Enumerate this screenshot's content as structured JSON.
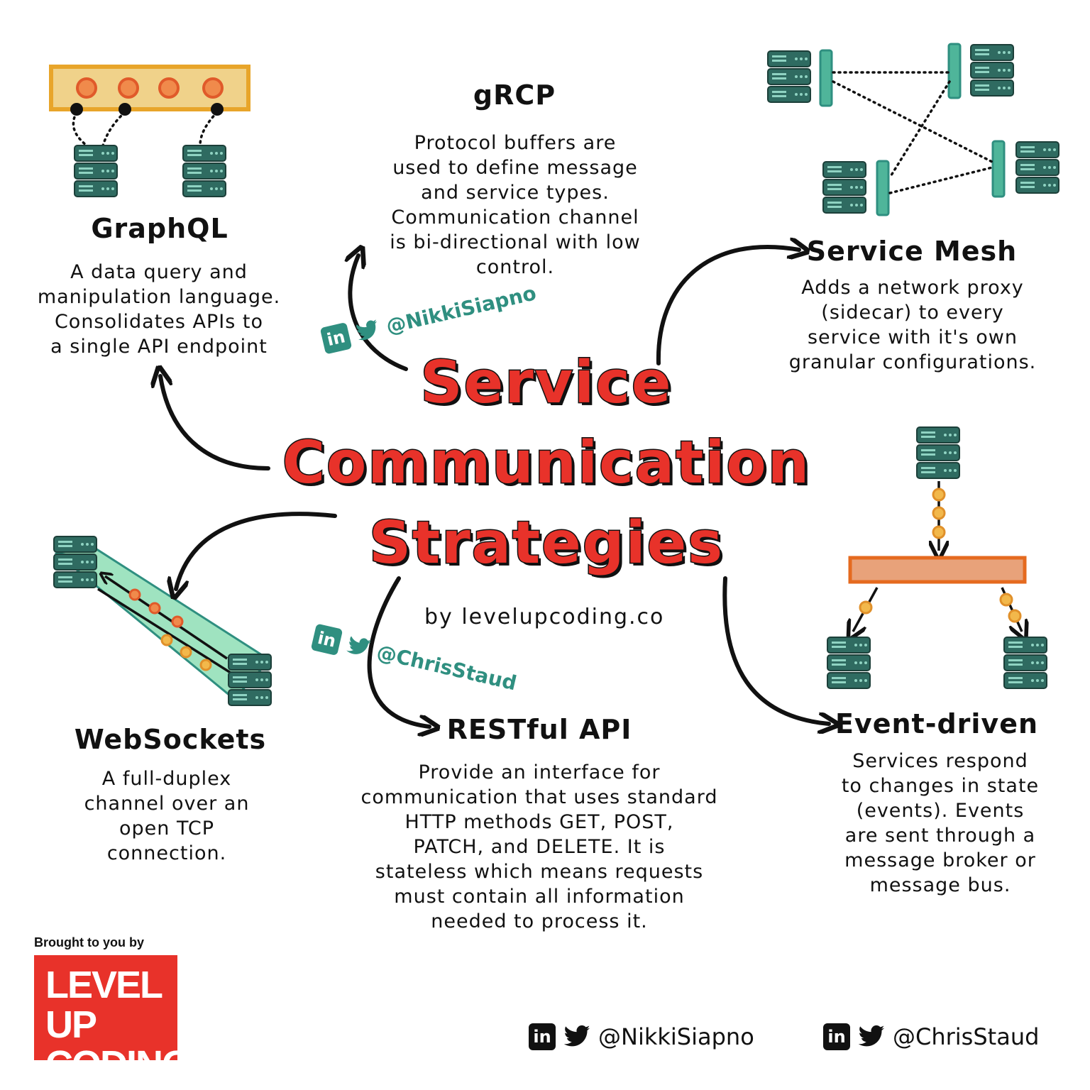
{
  "title": {
    "line1": "Service",
    "line2": "Communication",
    "line3": "Strategies"
  },
  "byline": "by levelupcoding.co",
  "sections": {
    "graphql": {
      "heading": "GraphQL",
      "lines": [
        "A data query and",
        "manipulation language.",
        "Consolidates APIs to",
        "a single API endpoint"
      ]
    },
    "grpc": {
      "heading": "gRCP",
      "lines": [
        "Protocol buffers are",
        "used to define message",
        "and service types.",
        "Communication channel",
        "is bi-directional with low",
        "control."
      ]
    },
    "service_mesh": {
      "heading": "Service Mesh",
      "lines": [
        "Adds a network proxy",
        "(sidecar) to every",
        "service with it's own",
        "granular configurations."
      ]
    },
    "websockets": {
      "heading": "WebSockets",
      "lines": [
        "A full-duplex",
        "channel over an",
        "open TCP",
        "connection."
      ]
    },
    "restful": {
      "heading": "RESTful API",
      "lines": [
        "Provide an interface for",
        "communication that uses standard",
        "HTTP methods GET, POST,",
        "PATCH, and DELETE. It is",
        "stateless which means requests",
        "must contain all information",
        "needed to process it."
      ]
    },
    "event_driven": {
      "heading": "Event-driven",
      "lines": [
        "Services respond",
        "to changes in state",
        "(events). Events",
        "are sent through a",
        "message broker or",
        "message bus."
      ]
    }
  },
  "watermarks": {
    "nikki": "@NikkiSiapno",
    "chris": "@ChrisStaud"
  },
  "social_icons": {
    "linkedin": "in",
    "twitter_icon": "twitter-bird-icon"
  },
  "footer": {
    "brought_by": "Brought to you by",
    "brand_line1": "LEVEL UP",
    "brand_line2": "CODING",
    "handle1": "@NikkiSiapno",
    "handle2": "@ChrisStaud"
  },
  "colors": {
    "title_red": "#e8322a",
    "server_teal": "#2f6b61",
    "sidecar_green": "#4fb59a",
    "websocket_band": "#9fe3c0",
    "dot_orange": "#f08a4b",
    "dot_yellow": "#f2b84b",
    "graphql_bar": "#f0d28a",
    "broker_bar": "#e8a27a",
    "brand_red": "#e8322a"
  }
}
